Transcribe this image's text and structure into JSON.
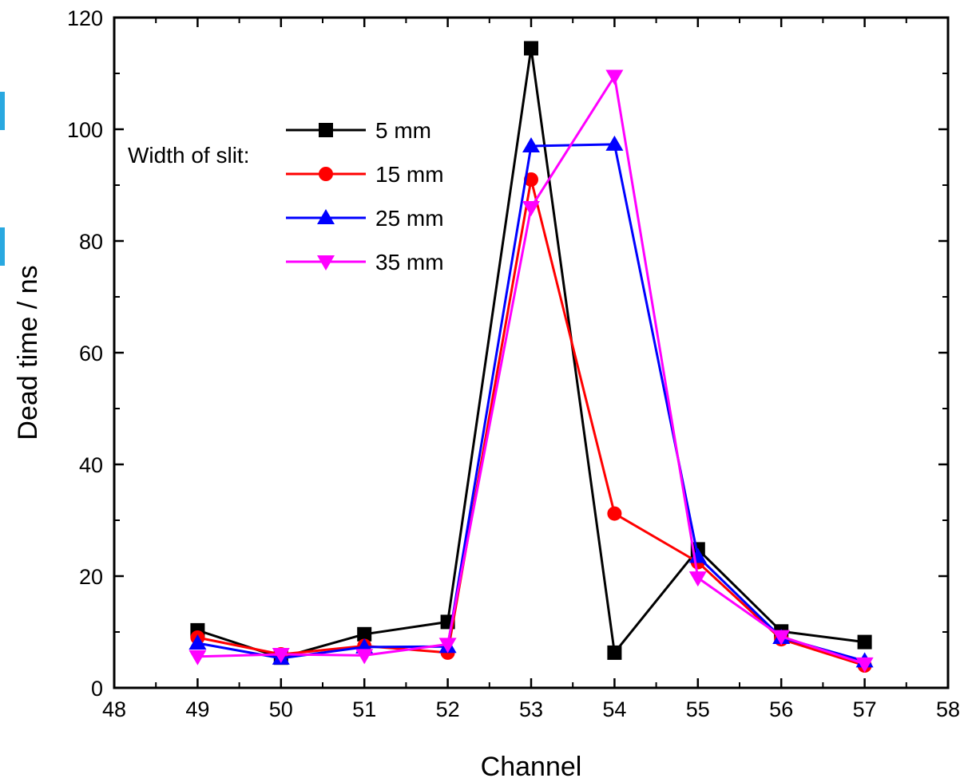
{
  "chart_data": {
    "type": "line",
    "xlabel": "Channel",
    "ylabel": "Dead time / ns",
    "xlim": [
      48,
      58
    ],
    "ylim": [
      0,
      120
    ],
    "x_ticks": [
      48,
      49,
      50,
      51,
      52,
      53,
      54,
      55,
      56,
      57,
      58
    ],
    "y_ticks": [
      0,
      20,
      40,
      60,
      80,
      100,
      120
    ],
    "grid": false,
    "legend": {
      "title": "Width of slit:",
      "placement": "top-left"
    },
    "x": [
      49,
      50,
      51,
      52,
      53,
      54,
      55,
      56,
      57
    ],
    "series": [
      {
        "name": "5 mm",
        "color": "#000000",
        "marker": "square",
        "values": [
          10.3,
          5.4,
          9.6,
          11.8,
          114.5,
          6.3,
          24.8,
          10.1,
          8.2
        ]
      },
      {
        "name": "15 mm",
        "color": "#ff0000",
        "marker": "circle",
        "values": [
          9.0,
          6.0,
          7.5,
          6.3,
          91.0,
          31.2,
          22.5,
          8.7,
          4.0
        ]
      },
      {
        "name": "25 mm",
        "color": "#0000ff",
        "marker": "triangle-up",
        "values": [
          8.0,
          5.3,
          7.3,
          7.4,
          97.0,
          97.3,
          23.5,
          9.0,
          4.8
        ]
      },
      {
        "name": "35 mm",
        "color": "#ff00ff",
        "marker": "triangle-down",
        "values": [
          5.6,
          6.0,
          5.8,
          7.8,
          86.0,
          109.5,
          19.7,
          9.2,
          4.3
        ]
      }
    ]
  }
}
